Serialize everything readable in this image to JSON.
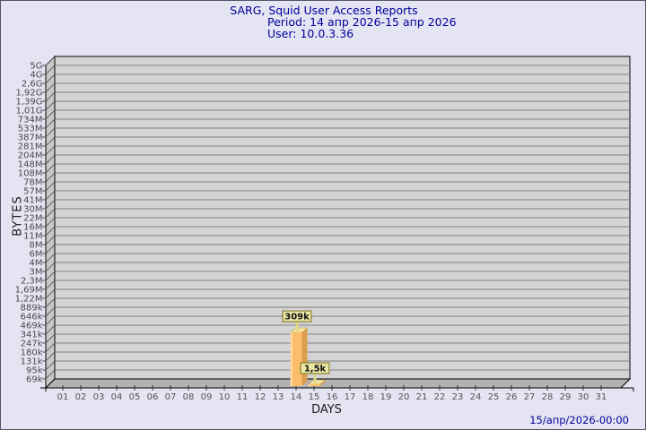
{
  "window": {
    "bg_color": "#e4e4f3",
    "border_color": "#55556a"
  },
  "header": {
    "title": "SARG, Squid User Access Reports",
    "period": "Period: 14 апр 2026-15 апр 2026",
    "user": "User: 10.0.3.36",
    "color": "#000099"
  },
  "footer": {
    "timestamp": "15/апр/2026-00:00",
    "color": "#000099"
  },
  "chart_data": {
    "type": "bar",
    "title": "SARG, Squid User Access Reports",
    "subtitle": "Period: 14 апр 2026-15 апр 2026 / User: 10.0.3.36",
    "xlabel": "DAYS",
    "ylabel": "BYTES",
    "scale": "log",
    "grid": true,
    "style": "3d-bars",
    "x_categories": [
      "01",
      "02",
      "03",
      "04",
      "05",
      "06",
      "07",
      "08",
      "09",
      "10",
      "11",
      "12",
      "13",
      "14",
      "15",
      "16",
      "17",
      "18",
      "19",
      "20",
      "21",
      "22",
      "23",
      "24",
      "25",
      "26",
      "27",
      "28",
      "29",
      "30",
      "31"
    ],
    "y_ticks": [
      "5G",
      "4G",
      "2,6G",
      "1,92G",
      "1,39G",
      "1,01G",
      "734M",
      "533M",
      "387M",
      "281M",
      "204M",
      "148M",
      "108M",
      "78M",
      "57M",
      "41M",
      "30M",
      "22M",
      "16M",
      "11M",
      "8M",
      "6M",
      "4M",
      "3M",
      "2,3M",
      "1,69M",
      "1,22M",
      "889k",
      "646k",
      "469k",
      "341k",
      "247k",
      "180k",
      "131k",
      "95k",
      "69k"
    ],
    "y_tick_values": [
      5000000000,
      4000000000,
      2600000000,
      1920000000,
      1390000000,
      1010000000,
      734000000,
      533000000,
      387000000,
      281000000,
      204000000,
      148000000,
      108000000,
      78000000,
      57000000,
      41000000,
      30000000,
      22000000,
      16000000,
      11000000,
      8000000,
      6000000,
      4000000,
      3000000,
      2300000,
      1690000,
      1220000,
      889000,
      646000,
      469000,
      341000,
      247000,
      180000,
      131000,
      95000,
      69000
    ],
    "bars": [
      {
        "day": 14,
        "value": 309000,
        "label": "309k"
      },
      {
        "day": 15,
        "value": 1500,
        "label": "1,5k"
      }
    ],
    "colors": {
      "plot_bg": "#d4d4d4",
      "grid": "#7f7f7f",
      "wall": "#c8c8c8",
      "floor": "#b2b2b2",
      "axis": "#000000",
      "tick_text": "#4a4a4a",
      "bar_front": "#fbbd6b",
      "bar_highlight": "#fdd89c",
      "bar_side": "#dc9f4e",
      "bar_top": "#f8e7a6",
      "label_box_bg": "#eae6a4",
      "label_box_border": "#76711c",
      "label_connector": "#e2d98a"
    }
  }
}
